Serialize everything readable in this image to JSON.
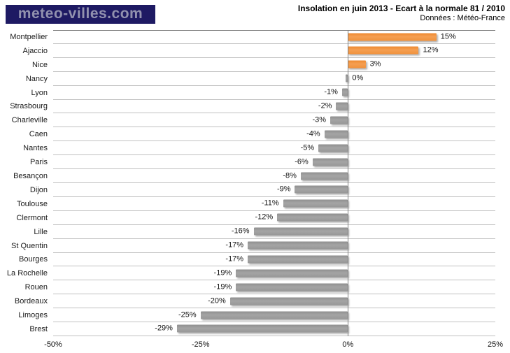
{
  "header": {
    "logo_text": "meteo-villes.com",
    "title": "Insolation en juin 2013 - Ecart à la normale 81 / 2010",
    "subtitle": "Données : Météo-France"
  },
  "colors": {
    "logo_background": "#1e1a63",
    "logo_text": "#9191ae",
    "positive_bar_orange": "#f0913c",
    "negative_bar_gray": "#9a9a9a",
    "grid_line": "#c0c0c0",
    "axis_line": "#7f7f7f"
  },
  "chart_data": {
    "type": "bar",
    "orientation": "horizontal",
    "title": "Insolation en juin 2013 - Ecart à la normale 81 / 2010",
    "subtitle": "Données : Météo-France",
    "categories": [
      "Montpellier",
      "Ajaccio",
      "Nice",
      "Nancy",
      "Lyon",
      "Strasbourg",
      "Charleville",
      "Caen",
      "Nantes",
      "Paris",
      "Besançon",
      "Dijon",
      "Toulouse",
      "Clermont",
      "Lille",
      "St Quentin",
      "Bourges",
      "La Rochelle",
      "Rouen",
      "Bordeaux",
      "Limoges",
      "Brest"
    ],
    "values": [
      15,
      12,
      3,
      0,
      -1,
      -2,
      -3,
      -4,
      -5,
      -6,
      -8,
      -9,
      -11,
      -12,
      -16,
      -17,
      -17,
      -19,
      -19,
      -20,
      -25,
      -29
    ],
    "value_labels": [
      "15%",
      "12%",
      "3%",
      "0%",
      "-1%",
      "-2%",
      "-3%",
      "-4%",
      "-5%",
      "-6%",
      "-8%",
      "-9%",
      "-11%",
      "-12%",
      "-16%",
      "-17%",
      "-17%",
      "-19%",
      "-19%",
      "-20%",
      "-25%",
      "-29%"
    ],
    "xlim": [
      -50,
      25
    ],
    "x_ticks": [
      "-50%",
      "-25%",
      "0%",
      "25%"
    ],
    "x_tick_values": [
      -50,
      -25,
      0,
      25
    ],
    "grid": "horizontal category separators, vertical zero line",
    "legend": "none",
    "bar_color_rule": "positive = orange, negative or zero = gray"
  }
}
